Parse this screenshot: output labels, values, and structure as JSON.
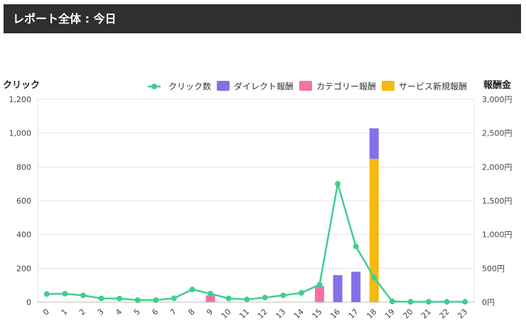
{
  "page_title": "レポート全体 : 今日",
  "chart_data": {
    "type": "bar",
    "y_left_label": "クリック",
    "y_right_label": "報酬金",
    "y_left_range": [
      0,
      1200
    ],
    "y_left_ticks": [
      "0",
      "200",
      "400",
      "600",
      "800",
      "1,000",
      "1,200"
    ],
    "y_right_range": [
      0,
      3000
    ],
    "y_right_ticks": [
      "0円",
      "500円",
      "1,000円",
      "1,500円",
      "2,000円",
      "2,500円",
      "3,000円"
    ],
    "categories": [
      "0",
      "1",
      "2",
      "3",
      "4",
      "5",
      "6",
      "7",
      "8",
      "9",
      "10",
      "11",
      "12",
      "13",
      "14",
      "15",
      "16",
      "17",
      "18",
      "19",
      "20",
      "21",
      "22",
      "23"
    ],
    "legend_position": "top-right",
    "grid": true,
    "series": [
      {
        "name": "クリック数",
        "type": "line",
        "axis": "left",
        "color": "#3fcf8e",
        "values": [
          48,
          50,
          40,
          22,
          21,
          12,
          12,
          23,
          75,
          50,
          22,
          16,
          27,
          40,
          55,
          103,
          700,
          330,
          145,
          4,
          2,
          2,
          2,
          2
        ]
      },
      {
        "name": "ダイレクト報酬",
        "type": "bar",
        "axis": "right",
        "color": "#8470ea",
        "values": [
          0,
          0,
          0,
          0,
          0,
          0,
          0,
          0,
          0,
          0,
          0,
          0,
          0,
          0,
          0,
          0,
          400,
          450,
          450,
          0,
          0,
          0,
          0,
          0
        ]
      },
      {
        "name": "カテゴリー報酬",
        "type": "bar",
        "axis": "right",
        "color": "#f472a4",
        "values": [
          0,
          0,
          0,
          0,
          0,
          0,
          0,
          0,
          0,
          100,
          0,
          0,
          0,
          0,
          0,
          240,
          0,
          0,
          0,
          0,
          0,
          0,
          0,
          0
        ]
      },
      {
        "name": "サービス新規報酬",
        "type": "bar",
        "axis": "right",
        "color": "#f6b90f",
        "values": [
          0,
          0,
          0,
          0,
          0,
          0,
          0,
          0,
          0,
          0,
          0,
          0,
          0,
          0,
          0,
          0,
          0,
          0,
          2120,
          0,
          0,
          0,
          0,
          0
        ]
      }
    ]
  }
}
